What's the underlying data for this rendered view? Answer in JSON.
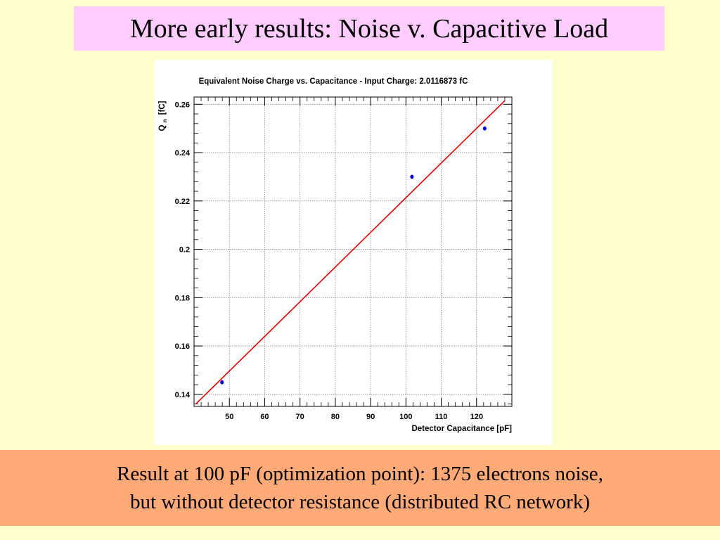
{
  "slide": {
    "title": "More early results: Noise v. Capacitive Load",
    "result_line1": "Result at 100 pF (optimization point): 1375 electrons noise,",
    "result_line2": "but without detector resistance (distributed RC network)"
  },
  "colors": {
    "background": "#ffffcc",
    "title_box": "#ffccff",
    "result_box": "#ffaa77",
    "fit_line": "#e60000",
    "points": "#0000dd"
  },
  "chart_data": {
    "type": "scatter",
    "title": "Equivalent Noise Charge vs. Capacitance - Input Charge: 2.0116873 fC",
    "xlabel": "Detector Capacitance [pF]",
    "ylabel": "Q",
    "ylabel_sub": "n",
    "ylabel_unit": "[fC]",
    "xlim": [
      40,
      130
    ],
    "ylim": [
      0.135,
      0.263
    ],
    "xticks": [
      50,
      60,
      70,
      80,
      90,
      100,
      110,
      120
    ],
    "xtick_labels": [
      "50",
      "60",
      "70",
      "80",
      "90",
      "100",
      "110",
      "120"
    ],
    "yticks": [
      0.14,
      0.16,
      0.18,
      0.2,
      0.22,
      0.24,
      0.26
    ],
    "ytick_labels": [
      "0.14",
      "0.16",
      "0.18",
      "0.2",
      "0.22",
      "0.24",
      "0.26"
    ],
    "grid": true,
    "series": [
      {
        "kind": "points",
        "x": [
          47.9,
          101.7,
          122.3
        ],
        "y": [
          0.145,
          0.23,
          0.25
        ]
      },
      {
        "kind": "fit-line",
        "x": [
          40.5,
          128.0
        ],
        "y": [
          0.136,
          0.2615
        ]
      }
    ]
  }
}
